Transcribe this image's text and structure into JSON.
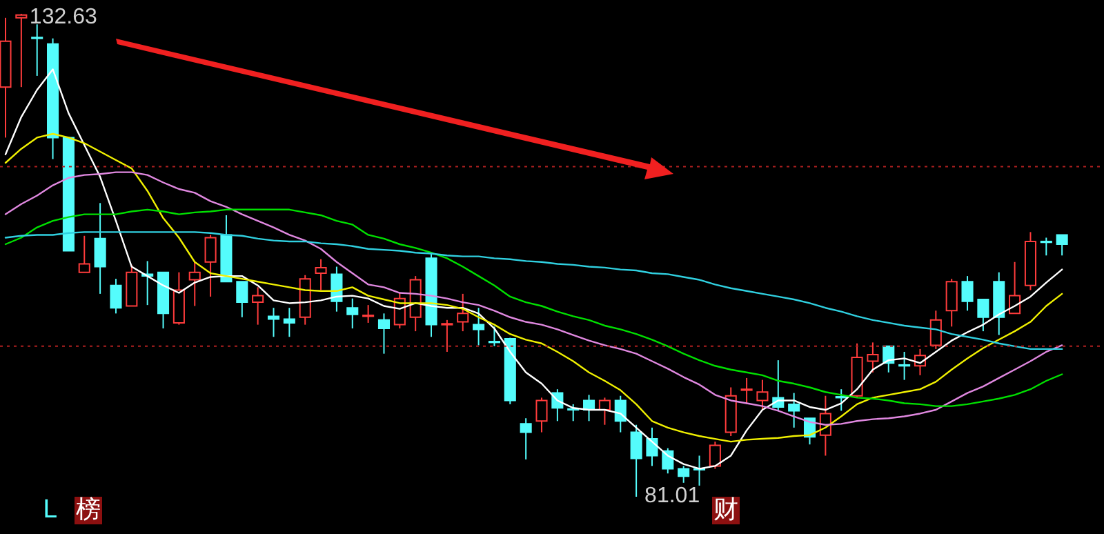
{
  "chart_data": {
    "type": "candlestick",
    "categories": [
      null,
      null,
      null,
      null,
      null,
      null,
      null,
      null,
      null,
      null,
      null,
      null,
      null,
      null,
      null,
      null,
      null,
      null,
      null,
      null,
      null,
      null,
      null,
      null,
      null,
      null,
      null,
      null,
      null,
      null,
      null,
      null,
      null,
      null,
      null,
      null,
      null,
      null,
      null,
      null,
      null,
      null,
      null,
      null,
      null,
      null,
      null,
      null,
      null,
      null,
      null,
      null,
      null,
      null,
      null,
      null,
      null,
      null,
      null,
      null,
      null,
      null,
      null,
      null,
      null,
      null,
      null,
      null
    ],
    "ohlc": [
      [
        124.8,
        132.2,
        119.4,
        129.7
      ],
      [
        132.2,
        132.63,
        124.8,
        132.5
      ],
      [
        130.1,
        131.5,
        126.0,
        130.0
      ],
      [
        129.4,
        130.0,
        117.1,
        119.4
      ],
      [
        119.4,
        119.4,
        107.3,
        107.3
      ],
      [
        105.0,
        108.9,
        105.0,
        105.9
      ],
      [
        108.6,
        112.4,
        102.7,
        105.6
      ],
      [
        103.6,
        104.3,
        100.6,
        101.2
      ],
      [
        101.4,
        105.8,
        101.4,
        105.0
      ],
      [
        104.8,
        106.2,
        101.5,
        104.6
      ],
      [
        105.0,
        105.0,
        99.0,
        100.6
      ],
      [
        99.6,
        105.0,
        99.4,
        103.1
      ],
      [
        104.2,
        106.1,
        101.4,
        105.0
      ],
      [
        106.1,
        109.0,
        102.4,
        108.7
      ],
      [
        109.0,
        111.1,
        104.0,
        104.0
      ],
      [
        104.0,
        104.0,
        100.2,
        101.8
      ],
      [
        101.8,
        103.4,
        99.4,
        102.5
      ],
      [
        100.3,
        101.2,
        98.1,
        100.0
      ],
      [
        100.0,
        101.2,
        98.1,
        99.6
      ],
      [
        100.2,
        104.7,
        99.4,
        104.3
      ],
      [
        104.9,
        106.4,
        103.1,
        105.5
      ],
      [
        104.8,
        105.6,
        100.8,
        101.9
      ],
      [
        101.2,
        102.2,
        99.0,
        100.5
      ],
      [
        100.3,
        101.5,
        99.6,
        100.4
      ],
      [
        99.9,
        100.6,
        96.3,
        99.0
      ],
      [
        99.4,
        102.8,
        99.0,
        102.2
      ],
      [
        100.2,
        104.6,
        98.7,
        104.2
      ],
      [
        106.5,
        107.1,
        98.1,
        99.4
      ],
      [
        99.4,
        99.9,
        96.5,
        99.5
      ],
      [
        99.7,
        102.7,
        98.7,
        100.6
      ],
      [
        99.4,
        101.2,
        97.2,
        98.9
      ],
      [
        97.6,
        99.2,
        97.1,
        97.5
      ],
      [
        97.9,
        98.0,
        90.9,
        91.3
      ],
      [
        88.8,
        89.4,
        85.0,
        87.9
      ],
      [
        89.1,
        91.6,
        87.9,
        91.3
      ],
      [
        92.1,
        92.5,
        89.1,
        90.5
      ],
      [
        90.4,
        90.9,
        89.1,
        90.3
      ],
      [
        91.3,
        91.9,
        89.1,
        90.3
      ],
      [
        90.3,
        91.6,
        88.7,
        91.3
      ],
      [
        91.3,
        91.8,
        87.9,
        89.1
      ],
      [
        87.9,
        88.7,
        81.01,
        85.1
      ],
      [
        87.2,
        88.4,
        84.3,
        85.4
      ],
      [
        85.9,
        86.2,
        83.5,
        84.0
      ],
      [
        84.0,
        84.3,
        82.5,
        83.2
      ],
      [
        84.0,
        85.4,
        82.2,
        83.9
      ],
      [
        84.3,
        86.9,
        84.0,
        86.5
      ],
      [
        87.9,
        92.7,
        87.5,
        91.8
      ],
      [
        92.4,
        93.7,
        90.9,
        92.5
      ],
      [
        91.3,
        93.5,
        90.3,
        92.2
      ],
      [
        91.6,
        95.6,
        90.2,
        90.6
      ],
      [
        90.9,
        92.1,
        88.4,
        90.2
      ],
      [
        89.4,
        89.4,
        86.6,
        87.4
      ],
      [
        87.6,
        91.8,
        85.4,
        89.9
      ],
      [
        91.7,
        92.5,
        90.2,
        91.6
      ],
      [
        91.8,
        97.4,
        91.6,
        95.9
      ],
      [
        95.5,
        97.5,
        94.3,
        96.2
      ],
      [
        97.1,
        97.1,
        94.3,
        95.3
      ],
      [
        95.1,
        96.5,
        93.5,
        95.0
      ],
      [
        95.0,
        96.8,
        94.0,
        96.1
      ],
      [
        97.2,
        100.9,
        96.8,
        99.9
      ],
      [
        100.9,
        104.3,
        99.2,
        104.0
      ],
      [
        104.0,
        104.6,
        100.9,
        101.9
      ],
      [
        102.1,
        102.1,
        98.7,
        100.2
      ],
      [
        104.0,
        105.0,
        98.3,
        100.2
      ],
      [
        100.6,
        106.1,
        100.6,
        102.5
      ],
      [
        103.6,
        109.3,
        103.1,
        108.3
      ],
      [
        108.3,
        108.7,
        106.8,
        108.2
      ],
      [
        109.0,
        109.0,
        106.8,
        108.0
      ]
    ],
    "colors": [
      "#ff3c3c",
      "#ff3c3c",
      "#54fcfc",
      "#54fcfc",
      "#54fcfc",
      "#ff3c3c",
      "#54fcfc",
      "#54fcfc",
      "#ff3c3c",
      "#54fcfc",
      "#54fcfc",
      "#ff3c3c",
      "#ff3c3c",
      "#ff3c3c",
      "#54fcfc",
      "#54fcfc",
      "#ff3c3c",
      "#54fcfc",
      "#54fcfc",
      "#ff3c3c",
      "#ff3c3c",
      "#54fcfc",
      "#54fcfc",
      "#ff3c3c",
      "#54fcfc",
      "#ff3c3c",
      "#ff3c3c",
      "#54fcfc",
      "#ff3c3c",
      "#ff3c3c",
      "#54fcfc",
      "#54fcfc",
      "#54fcfc",
      "#54fcfc",
      "#ff3c3c",
      "#54fcfc",
      "#54fcfc",
      "#54fcfc",
      "#ff3c3c",
      "#54fcfc",
      "#54fcfc",
      "#54fcfc",
      "#54fcfc",
      "#54fcfc",
      "#54fcfc",
      "#ff3c3c",
      "#ff3c3c",
      "#ff3c3c",
      "#ff3c3c",
      "#54fcfc",
      "#54fcfc",
      "#54fcfc",
      "#ff3c3c",
      "#54fcfc",
      "#ff3c3c",
      "#ff3c3c",
      "#54fcfc",
      "#54fcfc",
      "#ff3c3c",
      "#ff3c3c",
      "#ff3c3c",
      "#54fcfc",
      "#54fcfc",
      "#54fcfc",
      "#ff3c3c",
      "#ff3c3c",
      "#54fcfc",
      "#54fcfc"
    ],
    "series": [
      {
        "type": "line",
        "color": "#ffffff",
        "values": [
          117.6,
          121.6,
          124.5,
          126.7,
          122.0,
          118.6,
          115.2,
          110.5,
          105.6,
          104.6,
          103.6,
          102.8,
          103.9,
          104.5,
          104.6,
          104.6,
          103.6,
          102.0,
          101.7,
          101.8,
          102.0,
          102.4,
          102.5,
          102.2,
          101.4,
          101.1,
          101.7,
          101.4,
          101.2,
          101.2,
          100.6,
          99.0,
          96.5,
          94.3,
          93.1,
          91.3,
          90.5,
          90.3,
          90.3,
          89.9,
          88.4,
          86.9,
          85.4,
          84.5,
          84.0,
          84.3,
          85.4,
          88.1,
          90.3,
          91.3,
          91.3,
          90.6,
          90.3,
          91.0,
          92.5,
          94.6,
          95.6,
          95.8,
          95.3,
          96.5,
          97.7,
          98.6,
          99.4,
          100.5,
          101.4,
          102.4,
          103.9,
          105.3
        ]
      },
      {
        "type": "line",
        "color": "#f0f000",
        "values": [
          116.7,
          118.2,
          119.4,
          119.8,
          119.4,
          118.8,
          117.9,
          117.0,
          116.1,
          113.7,
          110.8,
          108.7,
          106.1,
          104.9,
          104.6,
          104.3,
          104.0,
          103.7,
          103.4,
          103.1,
          103.0,
          103.0,
          103.4,
          102.5,
          102.1,
          101.7,
          101.7,
          101.7,
          101.5,
          101.1,
          100.2,
          99.4,
          98.4,
          97.8,
          97.4,
          96.5,
          95.5,
          94.3,
          93.4,
          92.4,
          90.9,
          89.1,
          88.4,
          87.9,
          87.5,
          87.2,
          86.9,
          87.1,
          87.2,
          87.3,
          87.5,
          87.6,
          88.4,
          89.6,
          90.9,
          91.6,
          91.9,
          92.2,
          92.5,
          93.3,
          94.6,
          95.8,
          96.9,
          97.8,
          98.7,
          99.7,
          101.4,
          102.7
        ]
      },
      {
        "type": "line",
        "color": "#e088e0",
        "values": [
          111.2,
          112.3,
          113.2,
          114.3,
          115.1,
          115.4,
          115.5,
          115.7,
          115.7,
          115.4,
          114.6,
          113.9,
          113.5,
          112.6,
          112.0,
          111.2,
          110.5,
          109.8,
          109.0,
          108.4,
          107.5,
          106.1,
          104.9,
          103.7,
          103.4,
          102.8,
          102.7,
          102.5,
          102.2,
          101.8,
          101.5,
          100.9,
          100.2,
          99.7,
          99.4,
          98.9,
          98.3,
          97.7,
          97.2,
          96.8,
          96.3,
          95.5,
          94.7,
          93.8,
          93.0,
          91.9,
          91.3,
          91.0,
          90.7,
          90.2,
          89.6,
          89.0,
          88.7,
          88.8,
          89.1,
          89.3,
          89.4,
          89.6,
          89.9,
          90.3,
          91.2,
          92.1,
          92.8,
          93.7,
          94.6,
          95.5,
          96.5,
          97.2
        ]
      },
      {
        "type": "line",
        "color": "#00e000",
        "values": [
          108.0,
          108.7,
          109.8,
          110.5,
          110.9,
          111.2,
          111.2,
          111.2,
          111.5,
          111.7,
          111.5,
          111.2,
          111.4,
          111.5,
          111.7,
          111.7,
          111.7,
          111.7,
          111.7,
          111.4,
          111.1,
          110.5,
          110.1,
          109.0,
          108.6,
          108.0,
          107.6,
          107.1,
          106.5,
          105.6,
          104.6,
          103.6,
          102.4,
          101.8,
          101.4,
          100.8,
          100.3,
          99.9,
          99.3,
          98.9,
          98.4,
          97.8,
          97.1,
          96.3,
          95.6,
          95.0,
          94.6,
          94.3,
          94.0,
          93.4,
          93.1,
          92.7,
          92.2,
          91.9,
          91.6,
          91.5,
          91.3,
          91.0,
          90.9,
          90.7,
          90.7,
          90.9,
          91.2,
          91.5,
          91.9,
          92.5,
          93.4,
          94.1
        ]
      },
      {
        "type": "line",
        "color": "#30d0e0",
        "values": [
          108.7,
          108.9,
          109.0,
          109.0,
          109.2,
          109.3,
          109.3,
          109.3,
          109.3,
          109.3,
          109.3,
          109.3,
          109.3,
          109.2,
          109.0,
          108.9,
          108.6,
          108.4,
          108.3,
          108.3,
          108.1,
          108.0,
          107.8,
          107.5,
          107.4,
          107.3,
          107.1,
          107.0,
          106.8,
          106.7,
          106.7,
          106.5,
          106.4,
          106.2,
          106.1,
          105.9,
          105.8,
          105.6,
          105.5,
          105.3,
          105.2,
          104.9,
          104.8,
          104.5,
          104.2,
          103.7,
          103.3,
          103.0,
          102.7,
          102.4,
          102.1,
          101.7,
          101.2,
          100.8,
          100.3,
          99.9,
          99.6,
          99.3,
          99.1,
          98.9,
          98.4,
          98.1,
          97.8,
          97.4,
          97.1,
          96.8,
          96.8,
          96.8
        ]
      }
    ],
    "ref_lines": [
      {
        "axis": "y",
        "value": 116.3,
        "color": "#b02020",
        "line_style": "dotted"
      },
      {
        "axis": "y",
        "value": 97.1,
        "color": "#b02020",
        "line_style": "dotted"
      }
    ],
    "annotations": [
      "132.63",
      "81.01",
      "L",
      "榜",
      "财"
    ],
    "tick_labels": false
  }
}
